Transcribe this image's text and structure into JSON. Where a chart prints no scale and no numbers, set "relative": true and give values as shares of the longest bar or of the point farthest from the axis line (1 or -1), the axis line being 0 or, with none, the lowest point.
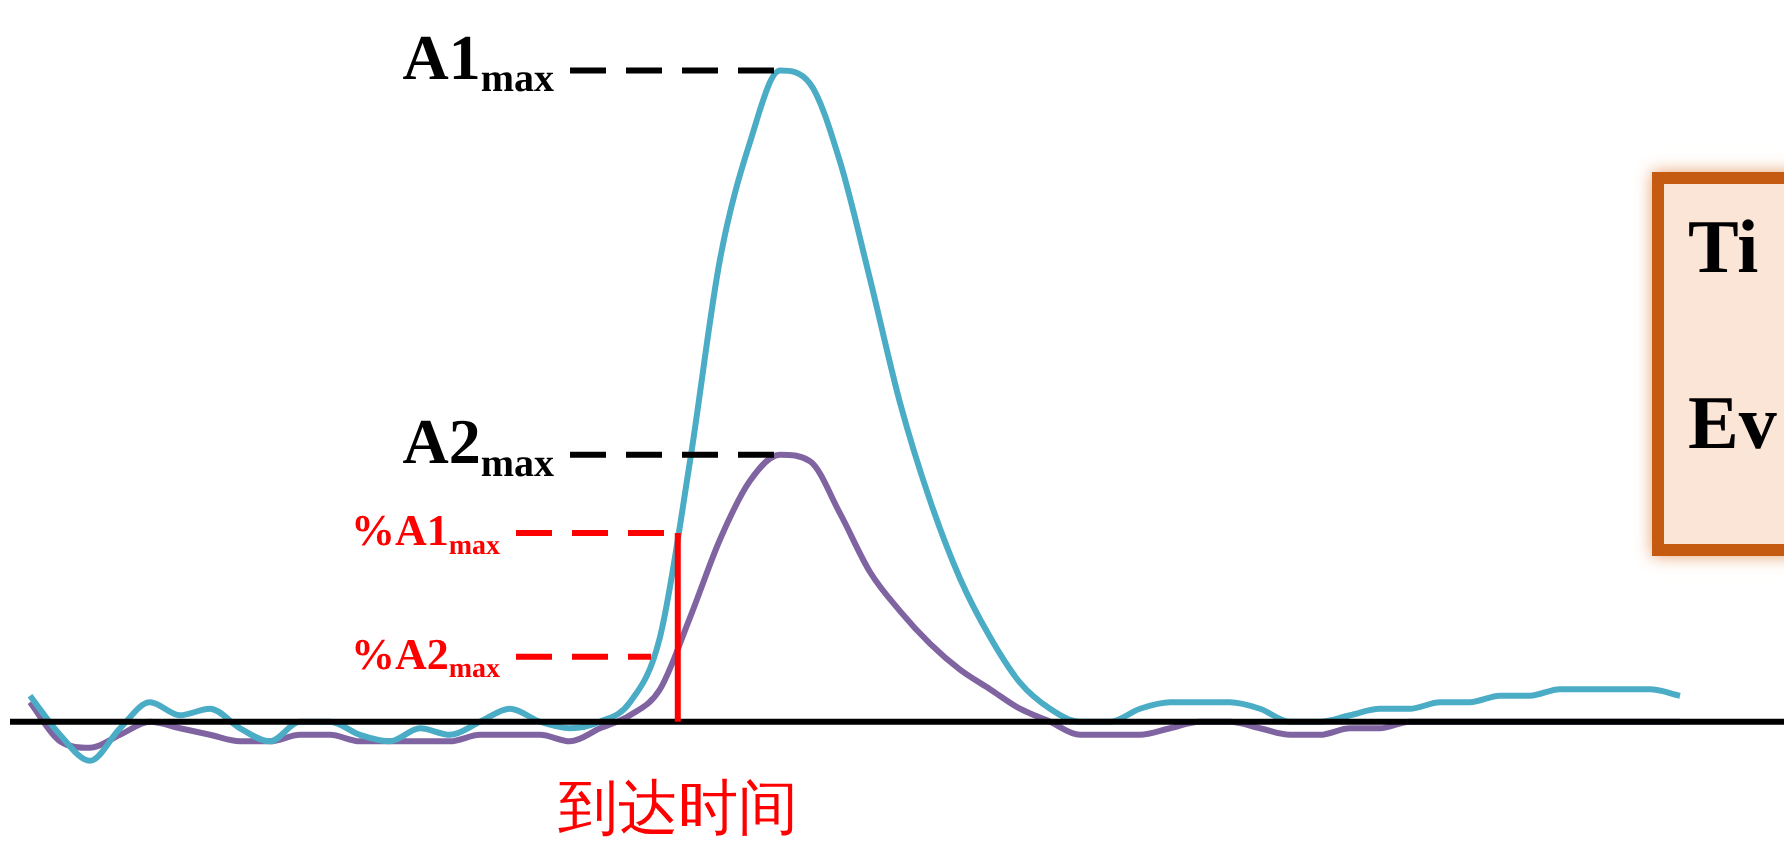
{
  "chart_data": {
    "type": "line",
    "relative": true,
    "legend": false,
    "marker": "none",
    "line_style": "solid",
    "categories": [
      null,
      null,
      null,
      null,
      null,
      null,
      null,
      null,
      null,
      null,
      null,
      null,
      null,
      null,
      null,
      null,
      null,
      null,
      null,
      null,
      null,
      null,
      null,
      null,
      null,
      null,
      null,
      null,
      null,
      null,
      null,
      null,
      null,
      null,
      null,
      null,
      null,
      null,
      null,
      null,
      null,
      null,
      null,
      null,
      null,
      null,
      null,
      null,
      null,
      null,
      null,
      null,
      null,
      null,
      null,
      null
    ],
    "series": [
      {
        "color": "#4bacc6",
        "values": [
          0.04,
          -0.02,
          -0.06,
          -0.01,
          0.03,
          0.01,
          0.02,
          -0.01,
          -0.03,
          0,
          0,
          -0.02,
          -0.03,
          -0.01,
          -0.02,
          0,
          0.02,
          0,
          -0.01,
          0,
          0.03,
          0.13,
          0.4,
          0.71,
          0.89,
          1,
          0.98,
          0.86,
          0.68,
          0.49,
          0.34,
          0.22,
          0.13,
          0.06,
          0.02,
          0,
          0,
          0.02,
          0.03,
          0.03,
          0.03,
          0.02,
          0,
          0,
          0.01,
          0.02,
          0.02,
          0.03,
          0.03,
          0.04,
          0.04,
          0.05,
          0.05,
          0.05,
          0.05,
          0.04
        ]
      },
      {
        "color": "#8064a2",
        "values": [
          0.03,
          -0.03,
          -0.04,
          -0.02,
          0,
          -0.01,
          -0.02,
          -0.03,
          -0.03,
          -0.02,
          -0.02,
          -0.03,
          -0.03,
          -0.03,
          -0.03,
          -0.02,
          -0.02,
          -0.02,
          -0.03,
          -0.01,
          0.01,
          0.05,
          0.16,
          0.28,
          0.37,
          0.41,
          0.4,
          0.32,
          0.23,
          0.17,
          0.12,
          0.08,
          0.05,
          0.02,
          0,
          -0.02,
          -0.02,
          -0.02,
          -0.01,
          0,
          0,
          -0.01,
          -0.02,
          -0.02,
          -0.01,
          -0.01,
          0,
          0,
          0,
          0,
          0,
          0,
          0,
          0,
          0,
          0
        ]
      }
    ],
    "ref_lines": [
      {
        "axis": "y",
        "value": 1,
        "label": "A1$_{max}$",
        "color": "#000000",
        "line_style": "dashed"
      },
      {
        "axis": "y",
        "value": 0.41,
        "label": "A2$_{max}$",
        "color": "#000000",
        "line_style": "dashed"
      },
      {
        "axis": "y",
        "value": 0.29,
        "label": "%A1$_{max}$",
        "color": "#ff0000",
        "line_style": "dashed"
      },
      {
        "axis": "y",
        "value": 0.1,
        "label": "%A2$_{max}$",
        "color": "#ff0000",
        "line_style": "dashed"
      }
    ],
    "annotations": [
      "到达时间",
      "Ti",
      "Ev"
    ]
  }
}
